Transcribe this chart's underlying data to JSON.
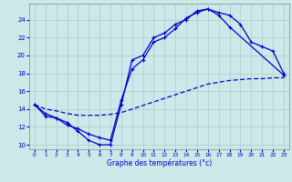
{
  "title": "Graphe des températures (°c)",
  "bg_color": "#cce8e8",
  "grid_color": "#aacccc",
  "line_color": "#0000cc",
  "xlim": [
    -0.5,
    23.5
  ],
  "ylim": [
    9.5,
    25.8
  ],
  "xticks": [
    0,
    1,
    2,
    3,
    4,
    5,
    6,
    7,
    8,
    9,
    10,
    11,
    12,
    13,
    14,
    15,
    16,
    17,
    18,
    19,
    20,
    21,
    22,
    23
  ],
  "yticks": [
    10,
    12,
    14,
    16,
    18,
    20,
    22,
    24
  ],
  "line1_x": [
    0,
    1,
    2,
    3,
    4,
    5,
    6,
    7,
    8,
    9,
    10,
    11,
    12,
    13,
    14,
    15,
    16,
    17,
    18,
    23
  ],
  "line1_y": [
    14.5,
    13.5,
    13.0,
    12.5,
    11.5,
    10.5,
    10.0,
    10.0,
    14.5,
    19.5,
    20.0,
    22.0,
    22.5,
    23.5,
    24.0,
    25.0,
    25.2,
    24.5,
    23.2,
    17.8
  ],
  "line2_x": [
    0,
    1,
    2,
    3,
    4,
    5,
    6,
    7,
    8,
    9,
    10,
    11,
    12,
    13,
    14,
    15,
    16,
    17,
    18,
    19,
    20,
    21,
    22,
    23
  ],
  "line2_y": [
    14.5,
    13.2,
    13.0,
    12.2,
    11.8,
    11.2,
    10.8,
    10.5,
    15.0,
    18.5,
    19.5,
    21.5,
    22.0,
    23.0,
    24.2,
    24.8,
    25.2,
    24.8,
    24.5,
    23.5,
    21.5,
    21.0,
    20.5,
    18.0
  ],
  "line3_x": [
    0,
    1,
    2,
    3,
    4,
    5,
    6,
    7,
    8,
    9,
    10,
    11,
    12,
    13,
    14,
    15,
    16,
    17,
    18,
    19,
    20,
    21,
    22,
    23
  ],
  "line3_y": [
    14.5,
    14.0,
    13.8,
    13.5,
    13.3,
    13.3,
    13.3,
    13.4,
    13.6,
    14.0,
    14.4,
    14.8,
    15.2,
    15.6,
    16.0,
    16.4,
    16.8,
    17.0,
    17.2,
    17.3,
    17.4,
    17.4,
    17.5,
    17.5
  ]
}
